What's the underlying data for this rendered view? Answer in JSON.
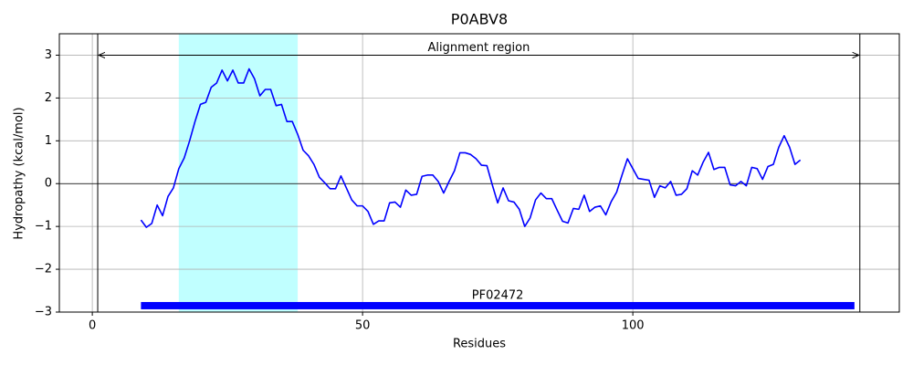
{
  "chart_data": {
    "type": "line",
    "title": "P0ABV8",
    "x_label": "Residues",
    "y_label": "Hydropathy (kcal/mol)",
    "x": [
      9,
      10,
      11,
      12,
      13,
      14,
      15,
      16,
      17,
      18,
      19,
      20,
      21,
      22,
      23,
      24,
      25,
      26,
      27,
      28,
      29,
      30,
      31,
      32,
      33,
      34,
      35,
      36,
      37,
      38,
      39,
      40,
      41,
      42,
      43,
      44,
      45,
      46,
      47,
      48,
      49,
      50,
      51,
      52,
      53,
      54,
      55,
      56,
      57,
      58,
      59,
      60,
      61,
      62,
      63,
      64,
      65,
      66,
      67,
      68,
      69,
      70,
      71,
      72,
      73,
      74,
      75,
      76,
      77,
      78,
      79,
      80,
      81,
      82,
      83,
      84,
      85,
      86,
      87,
      88,
      89,
      90,
      91,
      92,
      93,
      94,
      95,
      96,
      97,
      98,
      99,
      100,
      101,
      102,
      103,
      104,
      105,
      106,
      107,
      108,
      109,
      110,
      111,
      112,
      113,
      114,
      115,
      116,
      117,
      118,
      119,
      120,
      121,
      122,
      123,
      124,
      125,
      126,
      127,
      128,
      129,
      130,
      131
    ],
    "series": [
      {
        "color": "#0000ff",
        "values": [
          -0.85,
          -1.02,
          -0.93,
          -0.5,
          -0.75,
          -0.3,
          -0.1,
          0.35,
          0.6,
          1.0,
          1.45,
          1.85,
          1.9,
          2.25,
          2.35,
          2.65,
          2.4,
          2.65,
          2.35,
          2.35,
          2.68,
          2.45,
          2.05,
          2.2,
          2.2,
          1.82,
          1.85,
          1.45,
          1.45,
          1.15,
          0.78,
          0.65,
          0.45,
          0.15,
          0.02,
          -0.12,
          -0.12,
          0.18,
          -0.1,
          -0.38,
          -0.52,
          -0.52,
          -0.65,
          -0.95,
          -0.87,
          -0.87,
          -0.45,
          -0.43,
          -0.55,
          -0.15,
          -0.27,
          -0.25,
          0.17,
          0.2,
          0.2,
          0.05,
          -0.22,
          0.05,
          0.3,
          0.72,
          0.72,
          0.68,
          0.58,
          0.43,
          0.42,
          -0.03,
          -0.45,
          -0.1,
          -0.4,
          -0.43,
          -0.6,
          -1.0,
          -0.8,
          -0.38,
          -0.22,
          -0.35,
          -0.35,
          -0.62,
          -0.88,
          -0.92,
          -0.58,
          -0.6,
          -0.27,
          -0.65,
          -0.55,
          -0.52,
          -0.73,
          -0.42,
          -0.2,
          0.2,
          0.58,
          0.35,
          0.12,
          0.1,
          0.08,
          -0.32,
          -0.05,
          -0.1,
          0.05,
          -0.27,
          -0.25,
          -0.12,
          0.3,
          0.2,
          0.5,
          0.73,
          0.33,
          0.38,
          0.38,
          -0.03,
          -0.05,
          0.05,
          -0.05,
          0.38,
          0.35,
          0.1,
          0.4,
          0.45,
          0.85,
          1.12,
          0.85,
          0.45,
          0.55
        ]
      }
    ],
    "xlim": [
      -6.1,
      149.3
    ],
    "ylim": [
      -3,
      3.5
    ],
    "xticks": [
      0,
      50,
      100
    ],
    "yticks": [
      {
        "value": -3,
        "label": "−3"
      },
      {
        "value": -2,
        "label": "−2"
      },
      {
        "value": -1,
        "label": "−1"
      },
      0,
      1,
      2,
      3
    ],
    "grid": true,
    "hline": 0,
    "highlight": {
      "start": 16,
      "end": 38,
      "color": "#c0ffff"
    },
    "alignment_region": {
      "label": "Alignment region",
      "start": 1,
      "end": 142,
      "y": 3
    },
    "domain": {
      "label": "PF02472",
      "start": 9,
      "end": 141,
      "y": -2.85,
      "color": "#0000ff"
    }
  }
}
